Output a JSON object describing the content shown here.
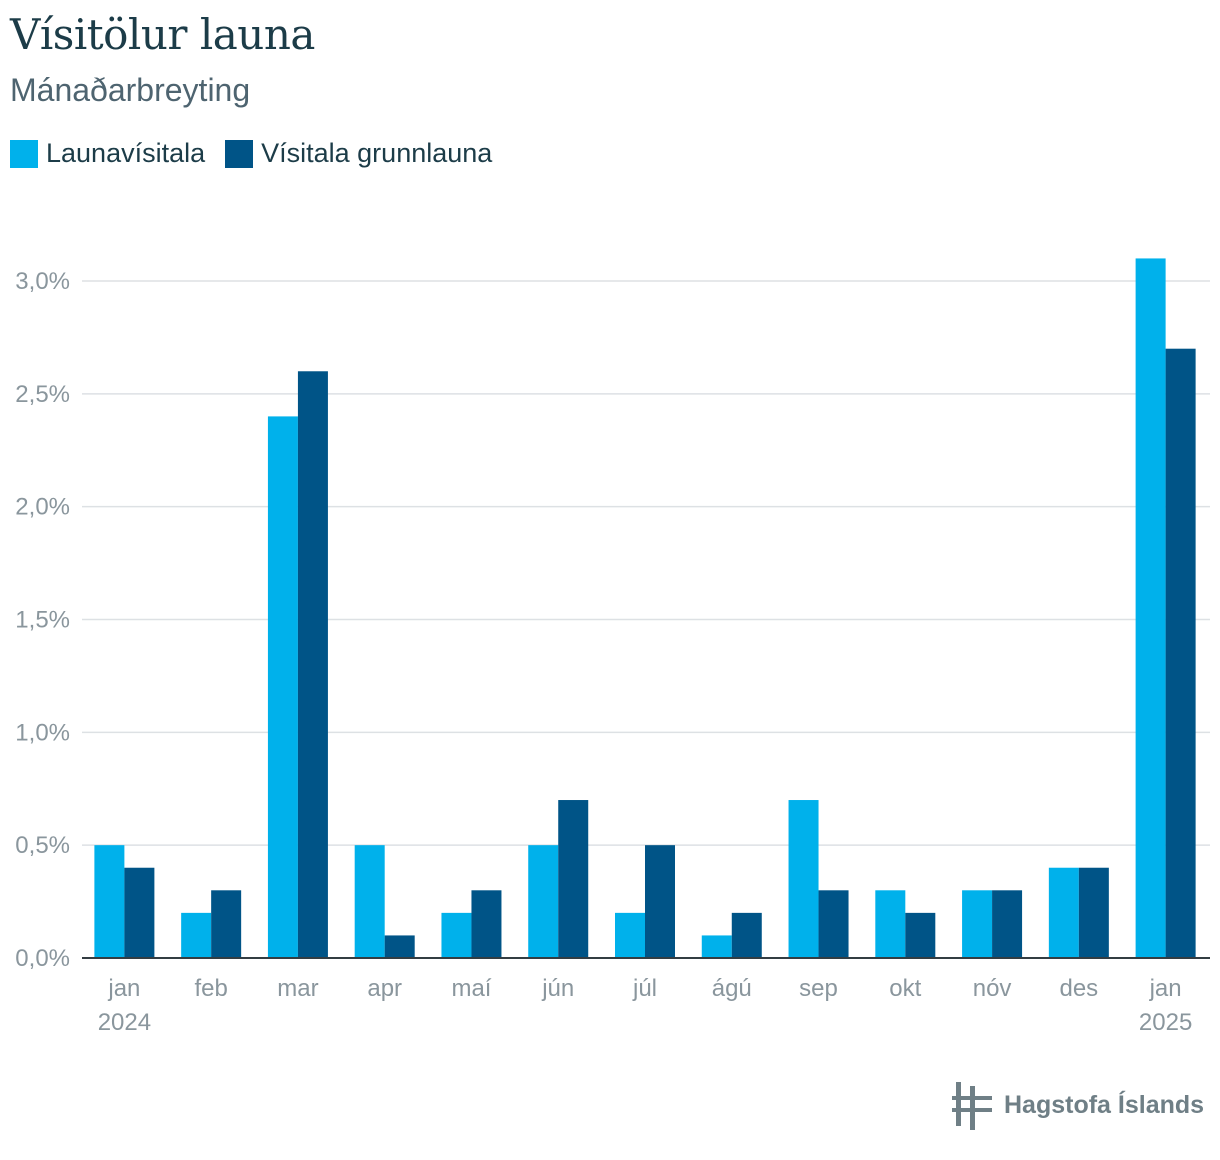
{
  "chart_data": {
    "type": "bar",
    "title": "Vísitölur launa",
    "subtitle": "Mánaðarbreyting",
    "categories": [
      "jan",
      "feb",
      "mar",
      "apr",
      "maí",
      "jún",
      "júl",
      "ágú",
      "sep",
      "okt",
      "nóv",
      "des",
      "jan"
    ],
    "year_labels": [
      "2024",
      "",
      "",
      "",
      "",
      "",
      "",
      "",
      "",
      "",
      "",
      "",
      "2025"
    ],
    "series": [
      {
        "name": "Launavísitala",
        "color": "#00b1eb",
        "values": [
          0.5,
          0.2,
          2.4,
          0.5,
          0.2,
          0.5,
          0.2,
          0.1,
          0.7,
          0.3,
          0.3,
          0.4,
          3.1
        ]
      },
      {
        "name": "Vísitala grunnlauna",
        "color": "#005487",
        "values": [
          0.4,
          0.3,
          2.6,
          0.1,
          0.3,
          0.7,
          0.5,
          0.2,
          0.3,
          0.2,
          0.3,
          0.4,
          2.7
        ]
      }
    ],
    "yticks": [
      0,
      0.5,
      1.0,
      1.5,
      2.0,
      2.5,
      3.0
    ],
    "ytick_labels": [
      "0,0%",
      "0,5%",
      "1,0%",
      "1,5%",
      "2,0%",
      "2,5%",
      "3,0%"
    ],
    "ylim": [
      0,
      3.1
    ],
    "xlabel": "",
    "ylabel": "",
    "legend": "top-left",
    "grid": true
  },
  "branding": {
    "logo_text": "Hagstofa Íslands",
    "logo_icon": "hagstofa-logo-icon"
  }
}
